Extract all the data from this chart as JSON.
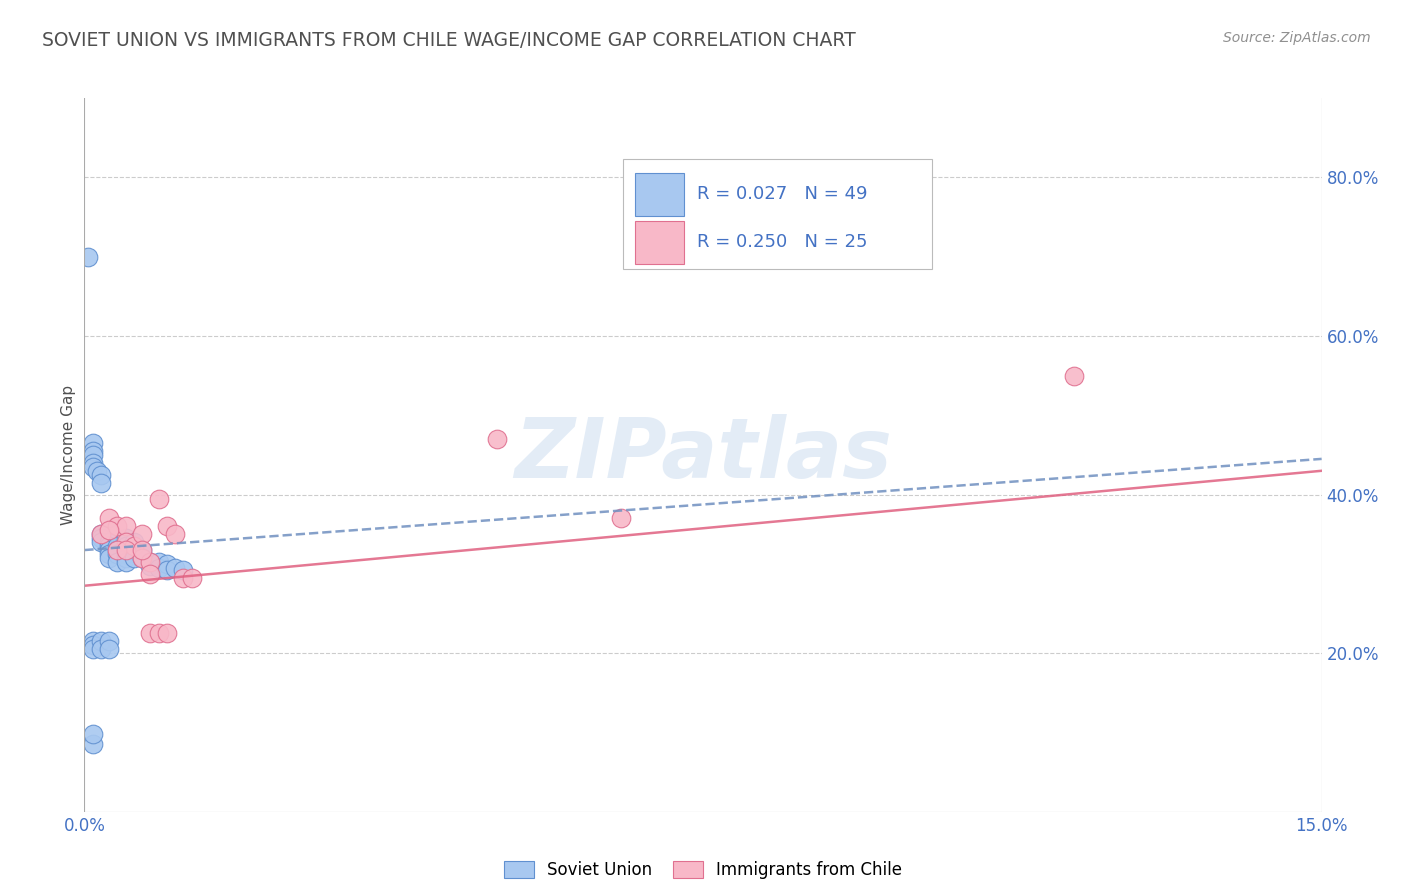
{
  "title": "SOVIET UNION VS IMMIGRANTS FROM CHILE WAGE/INCOME GAP CORRELATION CHART",
  "source": "Source: ZipAtlas.com",
  "ylabel": "Wage/Income Gap",
  "xlim": [
    0.0,
    0.15
  ],
  "ylim": [
    0.0,
    0.9
  ],
  "x_tick_positions": [
    0.0,
    0.03,
    0.06,
    0.09,
    0.12,
    0.15
  ],
  "x_tick_labels": [
    "0.0%",
    "",
    "",
    "",
    "",
    "15.0%"
  ],
  "y_ticks_right": [
    0.2,
    0.4,
    0.6,
    0.8
  ],
  "y_tick_labels_right": [
    "20.0%",
    "40.0%",
    "60.0%",
    "80.0%"
  ],
  "blue_fill": "#a8c8f0",
  "blue_edge": "#6090d0",
  "pink_fill": "#f8b8c8",
  "pink_edge": "#e07090",
  "blue_line_color": "#7090c0",
  "pink_line_color": "#e06080",
  "legend_text_color": "#4472c4",
  "title_color": "#505050",
  "source_color": "#909090",
  "background_color": "#ffffff",
  "grid_color": "#cccccc",
  "watermark": "ZIPatlas",
  "R_blue": "0.027",
  "N_blue": "49",
  "R_pink": "0.250",
  "N_pink": "25",
  "soviet_x": [
    0.0005,
    0.001,
    0.001,
    0.001,
    0.001,
    0.001,
    0.0015,
    0.002,
    0.002,
    0.002,
    0.002,
    0.002,
    0.003,
    0.003,
    0.003,
    0.003,
    0.003,
    0.004,
    0.004,
    0.004,
    0.004,
    0.005,
    0.005,
    0.005,
    0.005,
    0.005,
    0.005,
    0.006,
    0.006,
    0.006,
    0.007,
    0.007,
    0.008,
    0.008,
    0.009,
    0.009,
    0.01,
    0.01,
    0.011,
    0.012,
    0.001,
    0.001,
    0.001,
    0.002,
    0.002,
    0.003,
    0.003,
    0.001,
    0.001
  ],
  "soviet_y": [
    0.7,
    0.465,
    0.455,
    0.45,
    0.44,
    0.435,
    0.43,
    0.425,
    0.415,
    0.35,
    0.345,
    0.34,
    0.34,
    0.335,
    0.33,
    0.325,
    0.32,
    0.335,
    0.33,
    0.325,
    0.315,
    0.345,
    0.335,
    0.33,
    0.325,
    0.32,
    0.315,
    0.34,
    0.33,
    0.32,
    0.33,
    0.32,
    0.315,
    0.31,
    0.315,
    0.308,
    0.312,
    0.305,
    0.308,
    0.305,
    0.215,
    0.21,
    0.205,
    0.215,
    0.205,
    0.215,
    0.205,
    0.085,
    0.098
  ],
  "chile_x": [
    0.002,
    0.003,
    0.004,
    0.005,
    0.005,
    0.006,
    0.007,
    0.007,
    0.008,
    0.008,
    0.009,
    0.009,
    0.01,
    0.01,
    0.011,
    0.012,
    0.013,
    0.05,
    0.065,
    0.12,
    0.003,
    0.004,
    0.005,
    0.007,
    0.008
  ],
  "chile_y": [
    0.35,
    0.37,
    0.36,
    0.36,
    0.34,
    0.335,
    0.35,
    0.32,
    0.315,
    0.225,
    0.225,
    0.395,
    0.36,
    0.225,
    0.35,
    0.295,
    0.295,
    0.47,
    0.37,
    0.55,
    0.355,
    0.33,
    0.33,
    0.33,
    0.3
  ],
  "blue_trend_x": [
    0.0,
    0.15
  ],
  "blue_trend_y": [
    0.33,
    0.445
  ],
  "pink_trend_x": [
    0.0,
    0.15
  ],
  "pink_trend_y": [
    0.285,
    0.43
  ]
}
